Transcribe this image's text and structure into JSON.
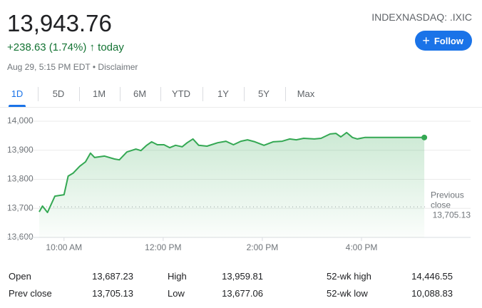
{
  "header": {
    "price": "13,943.76",
    "change": "+238.63 (1.74%)",
    "arrow": "↑",
    "period": "today",
    "timestamp": "Aug 29, 5:15 PM EDT",
    "separator": "•",
    "disclaimer": "Disclaimer",
    "ticker": "INDEXNASDAQ: .IXIC",
    "follow": "Follow"
  },
  "tabs": [
    "1D",
    "5D",
    "1M",
    "6M",
    "YTD",
    "1Y",
    "5Y",
    "Max"
  ],
  "chart_data": {
    "type": "line",
    "color": "#34a853",
    "x": [
      570,
      574,
      580,
      589,
      600,
      605,
      611,
      619,
      626,
      632,
      637,
      649,
      661,
      667,
      676,
      687,
      693,
      700,
      706,
      713,
      721,
      728,
      735,
      743,
      749,
      756,
      763,
      773,
      786,
      796,
      805,
      814,
      822,
      831,
      842,
      853,
      864,
      873,
      881,
      890,
      903,
      911,
      922,
      929,
      935,
      942,
      949,
      955,
      964,
      1036
    ],
    "values": [
      13688,
      13708,
      13686,
      13742,
      13747,
      13811,
      13821,
      13845,
      13860,
      13890,
      13875,
      13880,
      13870,
      13867,
      13894,
      13904,
      13899,
      13917,
      13929,
      13919,
      13919,
      13909,
      13917,
      13912,
      13926,
      13939,
      13917,
      13914,
      13926,
      13931,
      13919,
      13931,
      13936,
      13929,
      13917,
      13929,
      13931,
      13939,
      13936,
      13941,
      13939,
      13941,
      13956,
      13958,
      13946,
      13961,
      13944,
      13939,
      13944,
      13944
    ],
    "xlim": [
      570,
      1092
    ],
    "xticks": [
      {
        "value": 600,
        "label": "10:00 AM"
      },
      {
        "value": 720,
        "label": "12:00 PM"
      },
      {
        "value": 840,
        "label": "2:00 PM"
      },
      {
        "value": 960,
        "label": "4:00 PM"
      }
    ],
    "ylim": [
      13600,
      14000
    ],
    "yticks": [
      {
        "value": 13600,
        "label": "13,600"
      },
      {
        "value": 13700,
        "label": "13,700"
      },
      {
        "value": 13800,
        "label": "13,800"
      },
      {
        "value": 13900,
        "label": "13,900"
      },
      {
        "value": 14000,
        "label": "14,000"
      }
    ],
    "grid": true,
    "reference": {
      "line1": "Previous",
      "line2": "close",
      "value": 13705.13,
      "label": "13,705.13"
    }
  },
  "stats": {
    "rows": [
      [
        "Open",
        "13,687.23",
        "High",
        "13,959.81",
        "52-wk high",
        "14,446.55"
      ],
      [
        "Prev close",
        "13,705.13",
        "Low",
        "13,677.06",
        "52-wk low",
        "10,088.83"
      ]
    ]
  }
}
